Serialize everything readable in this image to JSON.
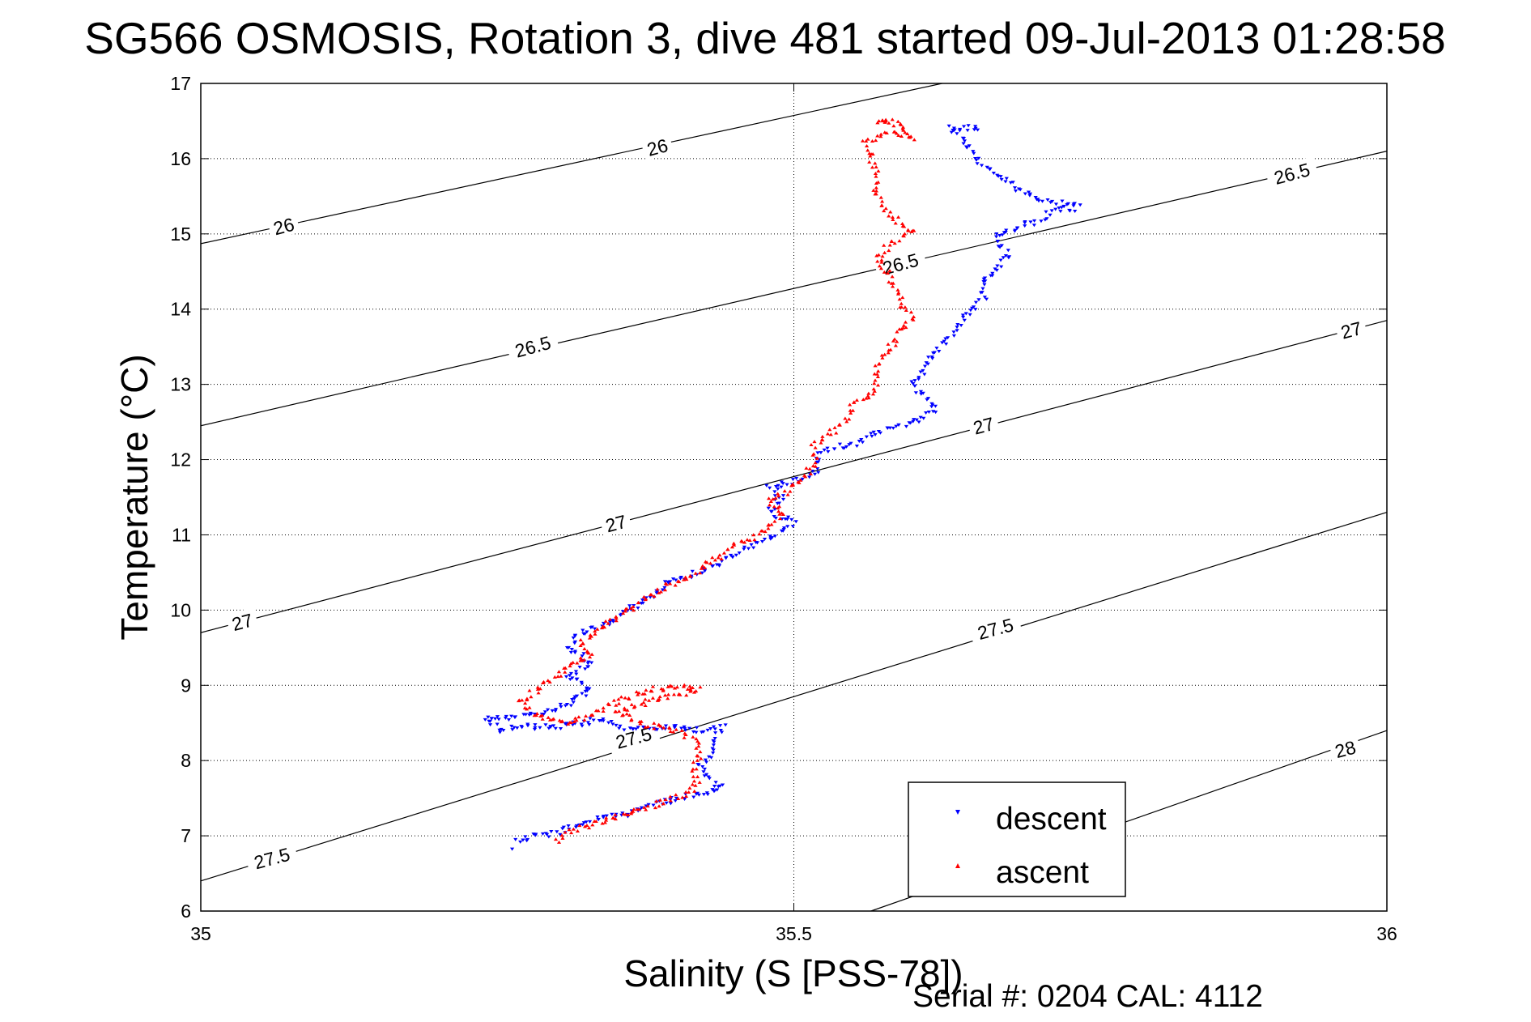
{
  "title": "SG566 OSMOSIS, Rotation 3, dive 481 started 09-Jul-2013 01:28:58",
  "footer": "Serial #: 0204  CAL: 4112",
  "colors": {
    "descent": "#0000ff",
    "ascent": "#ff0000",
    "axes": "#000000",
    "grid": "#000000"
  },
  "chart_data": {
    "type": "scatter",
    "xlabel": "Salinity (S [PSS-78])",
    "ylabel": "Temperature (°C)",
    "xlim": [
      35,
      36
    ],
    "ylim": [
      6,
      17
    ],
    "xticks": [
      35,
      35.5,
      36
    ],
    "xtick_labels": [
      "35",
      "35.5",
      "36"
    ],
    "yticks": [
      6,
      7,
      8,
      9,
      10,
      11,
      12,
      13,
      14,
      15,
      16,
      17
    ],
    "ytick_labels": [
      "6",
      "7",
      "8",
      "9",
      "10",
      "11",
      "12",
      "13",
      "14",
      "15",
      "16",
      "17"
    ],
    "grid": true,
    "legend": {
      "position": "bottom-right",
      "entries": [
        "descent",
        "ascent"
      ]
    },
    "density_contours": [
      {
        "level": 26,
        "points": [
          [
            35,
            14.87
          ],
          [
            35.625,
            17.0
          ]
        ],
        "labels": [
          {
            "text": "26",
            "x": 35.07,
            "y": 15.1,
            "angle": -15
          },
          {
            "text": "26",
            "x": 35.385,
            "y": 16.15,
            "angle": -15
          }
        ]
      },
      {
        "level": 26.5,
        "points": [
          [
            35,
            12.45
          ],
          [
            36,
            16.1
          ]
        ],
        "labels": [
          {
            "text": "26.5",
            "x": 35.28,
            "y": 13.5,
            "angle": -15
          },
          {
            "text": "26.5",
            "x": 35.59,
            "y": 14.6,
            "angle": -15
          },
          {
            "text": "26.5",
            "x": 35.92,
            "y": 15.8,
            "angle": -15
          }
        ]
      },
      {
        "level": 27,
        "points": [
          [
            35,
            9.7
          ],
          [
            36,
            13.85
          ]
        ],
        "labels": [
          {
            "text": "27",
            "x": 35.035,
            "y": 9.84,
            "angle": -15
          },
          {
            "text": "27",
            "x": 35.35,
            "y": 11.15,
            "angle": -15
          },
          {
            "text": "27",
            "x": 35.66,
            "y": 12.45,
            "angle": -15
          },
          {
            "text": "27",
            "x": 35.97,
            "y": 13.72,
            "angle": -15
          }
        ]
      },
      {
        "level": 27.5,
        "points": [
          [
            35,
            6.4
          ],
          [
            36,
            11.3
          ]
        ],
        "labels": [
          {
            "text": "27.5",
            "x": 35.06,
            "y": 6.7,
            "angle": -15
          },
          {
            "text": "27.5",
            "x": 35.365,
            "y": 8.3,
            "angle": -15
          },
          {
            "text": "27.5",
            "x": 35.67,
            "y": 9.75,
            "angle": -15
          }
        ]
      },
      {
        "level": 28,
        "points": [
          [
            35.565,
            6.0
          ],
          [
            36,
            8.4
          ]
        ],
        "labels": [
          {
            "text": "28",
            "x": 35.965,
            "y": 8.15,
            "angle": -15
          }
        ]
      }
    ],
    "series": [
      {
        "name": "descent",
        "marker": "triangle-down",
        "path": [
          [
            35.265,
            6.85
          ],
          [
            35.27,
            6.95
          ],
          [
            35.3,
            7.05
          ],
          [
            35.33,
            7.2
          ],
          [
            35.36,
            7.3
          ],
          [
            35.39,
            7.45
          ],
          [
            35.42,
            7.55
          ],
          [
            35.44,
            7.65
          ],
          [
            35.425,
            7.8
          ],
          [
            35.42,
            7.95
          ],
          [
            35.43,
            8.05
          ],
          [
            35.43,
            8.2
          ],
          [
            35.435,
            8.35
          ],
          [
            35.44,
            8.45
          ],
          [
            35.42,
            8.4
          ],
          [
            35.39,
            8.45
          ],
          [
            35.37,
            8.4
          ],
          [
            35.35,
            8.45
          ],
          [
            35.34,
            8.55
          ],
          [
            35.3,
            8.45
          ],
          [
            35.27,
            8.45
          ],
          [
            35.255,
            8.4
          ],
          [
            35.24,
            8.55
          ],
          [
            35.28,
            8.6
          ],
          [
            35.31,
            8.75
          ],
          [
            35.33,
            8.95
          ],
          [
            35.31,
            9.15
          ],
          [
            35.33,
            9.3
          ],
          [
            35.31,
            9.5
          ],
          [
            35.32,
            9.7
          ],
          [
            35.345,
            9.85
          ],
          [
            35.36,
            10.0
          ],
          [
            35.38,
            10.2
          ],
          [
            35.39,
            10.35
          ],
          [
            35.42,
            10.5
          ],
          [
            35.44,
            10.65
          ],
          [
            35.46,
            10.8
          ],
          [
            35.48,
            10.95
          ],
          [
            35.5,
            11.15
          ],
          [
            35.48,
            11.3
          ],
          [
            35.49,
            11.5
          ],
          [
            35.48,
            11.65
          ],
          [
            35.5,
            11.7
          ],
          [
            35.52,
            11.85
          ],
          [
            35.52,
            12.05
          ],
          [
            35.53,
            12.15
          ],
          [
            35.55,
            12.2
          ],
          [
            35.57,
            12.35
          ],
          [
            35.6,
            12.5
          ],
          [
            35.62,
            12.65
          ],
          [
            35.61,
            12.85
          ],
          [
            35.6,
            13.0
          ],
          [
            35.61,
            13.2
          ],
          [
            35.62,
            13.45
          ],
          [
            35.63,
            13.6
          ],
          [
            35.64,
            13.8
          ],
          [
            35.65,
            14.0
          ],
          [
            35.66,
            14.15
          ],
          [
            35.66,
            14.4
          ],
          [
            35.68,
            14.7
          ],
          [
            35.67,
            15.0
          ],
          [
            35.7,
            15.15
          ],
          [
            35.72,
            15.3
          ],
          [
            35.74,
            15.35
          ],
          [
            35.7,
            15.5
          ],
          [
            35.67,
            15.8
          ],
          [
            35.65,
            16.05
          ],
          [
            35.64,
            16.3
          ],
          [
            35.63,
            16.4
          ],
          [
            35.66,
            16.42
          ]
        ]
      },
      {
        "name": "ascent",
        "marker": "triangle-up",
        "path": [
          [
            35.3,
            6.95
          ],
          [
            35.32,
            7.1
          ],
          [
            35.35,
            7.25
          ],
          [
            35.37,
            7.35
          ],
          [
            35.39,
            7.45
          ],
          [
            35.41,
            7.55
          ],
          [
            35.42,
            7.7
          ],
          [
            35.415,
            7.85
          ],
          [
            35.42,
            8.05
          ],
          [
            35.42,
            8.25
          ],
          [
            35.4,
            8.4
          ],
          [
            35.37,
            8.5
          ],
          [
            35.35,
            8.65
          ],
          [
            35.38,
            8.8
          ],
          [
            35.42,
            8.95
          ],
          [
            35.4,
            9.0
          ],
          [
            35.37,
            8.9
          ],
          [
            35.345,
            8.75
          ],
          [
            35.33,
            8.6
          ],
          [
            35.31,
            8.5
          ],
          [
            35.28,
            8.6
          ],
          [
            35.27,
            8.8
          ],
          [
            35.29,
            9.0
          ],
          [
            35.31,
            9.25
          ],
          [
            35.33,
            9.4
          ],
          [
            35.32,
            9.55
          ],
          [
            35.33,
            9.7
          ],
          [
            35.35,
            9.9
          ],
          [
            35.37,
            10.1
          ],
          [
            35.39,
            10.3
          ],
          [
            35.41,
            10.45
          ],
          [
            35.43,
            10.65
          ],
          [
            35.45,
            10.85
          ],
          [
            35.47,
            11.0
          ],
          [
            35.48,
            11.1
          ],
          [
            35.49,
            11.3
          ],
          [
            35.48,
            11.45
          ],
          [
            35.49,
            11.55
          ],
          [
            35.5,
            11.65
          ],
          [
            35.51,
            11.8
          ],
          [
            35.52,
            11.95
          ],
          [
            35.515,
            12.1
          ],
          [
            35.52,
            12.25
          ],
          [
            35.54,
            12.45
          ],
          [
            35.55,
            12.7
          ],
          [
            35.57,
            12.95
          ],
          [
            35.57,
            13.2
          ],
          [
            35.58,
            13.45
          ],
          [
            35.59,
            13.7
          ],
          [
            35.6,
            13.9
          ],
          [
            35.59,
            14.05
          ],
          [
            35.59,
            14.2
          ],
          [
            35.58,
            14.45
          ],
          [
            35.57,
            14.65
          ],
          [
            35.58,
            14.85
          ],
          [
            35.6,
            15.05
          ],
          [
            35.58,
            15.25
          ],
          [
            35.57,
            15.5
          ],
          [
            35.57,
            15.75
          ],
          [
            35.565,
            16.0
          ],
          [
            35.56,
            16.2
          ],
          [
            35.58,
            16.35
          ],
          [
            35.6,
            16.28
          ],
          [
            35.59,
            16.45
          ],
          [
            35.57,
            16.5
          ],
          [
            35.585,
            16.48
          ]
        ]
      }
    ]
  }
}
